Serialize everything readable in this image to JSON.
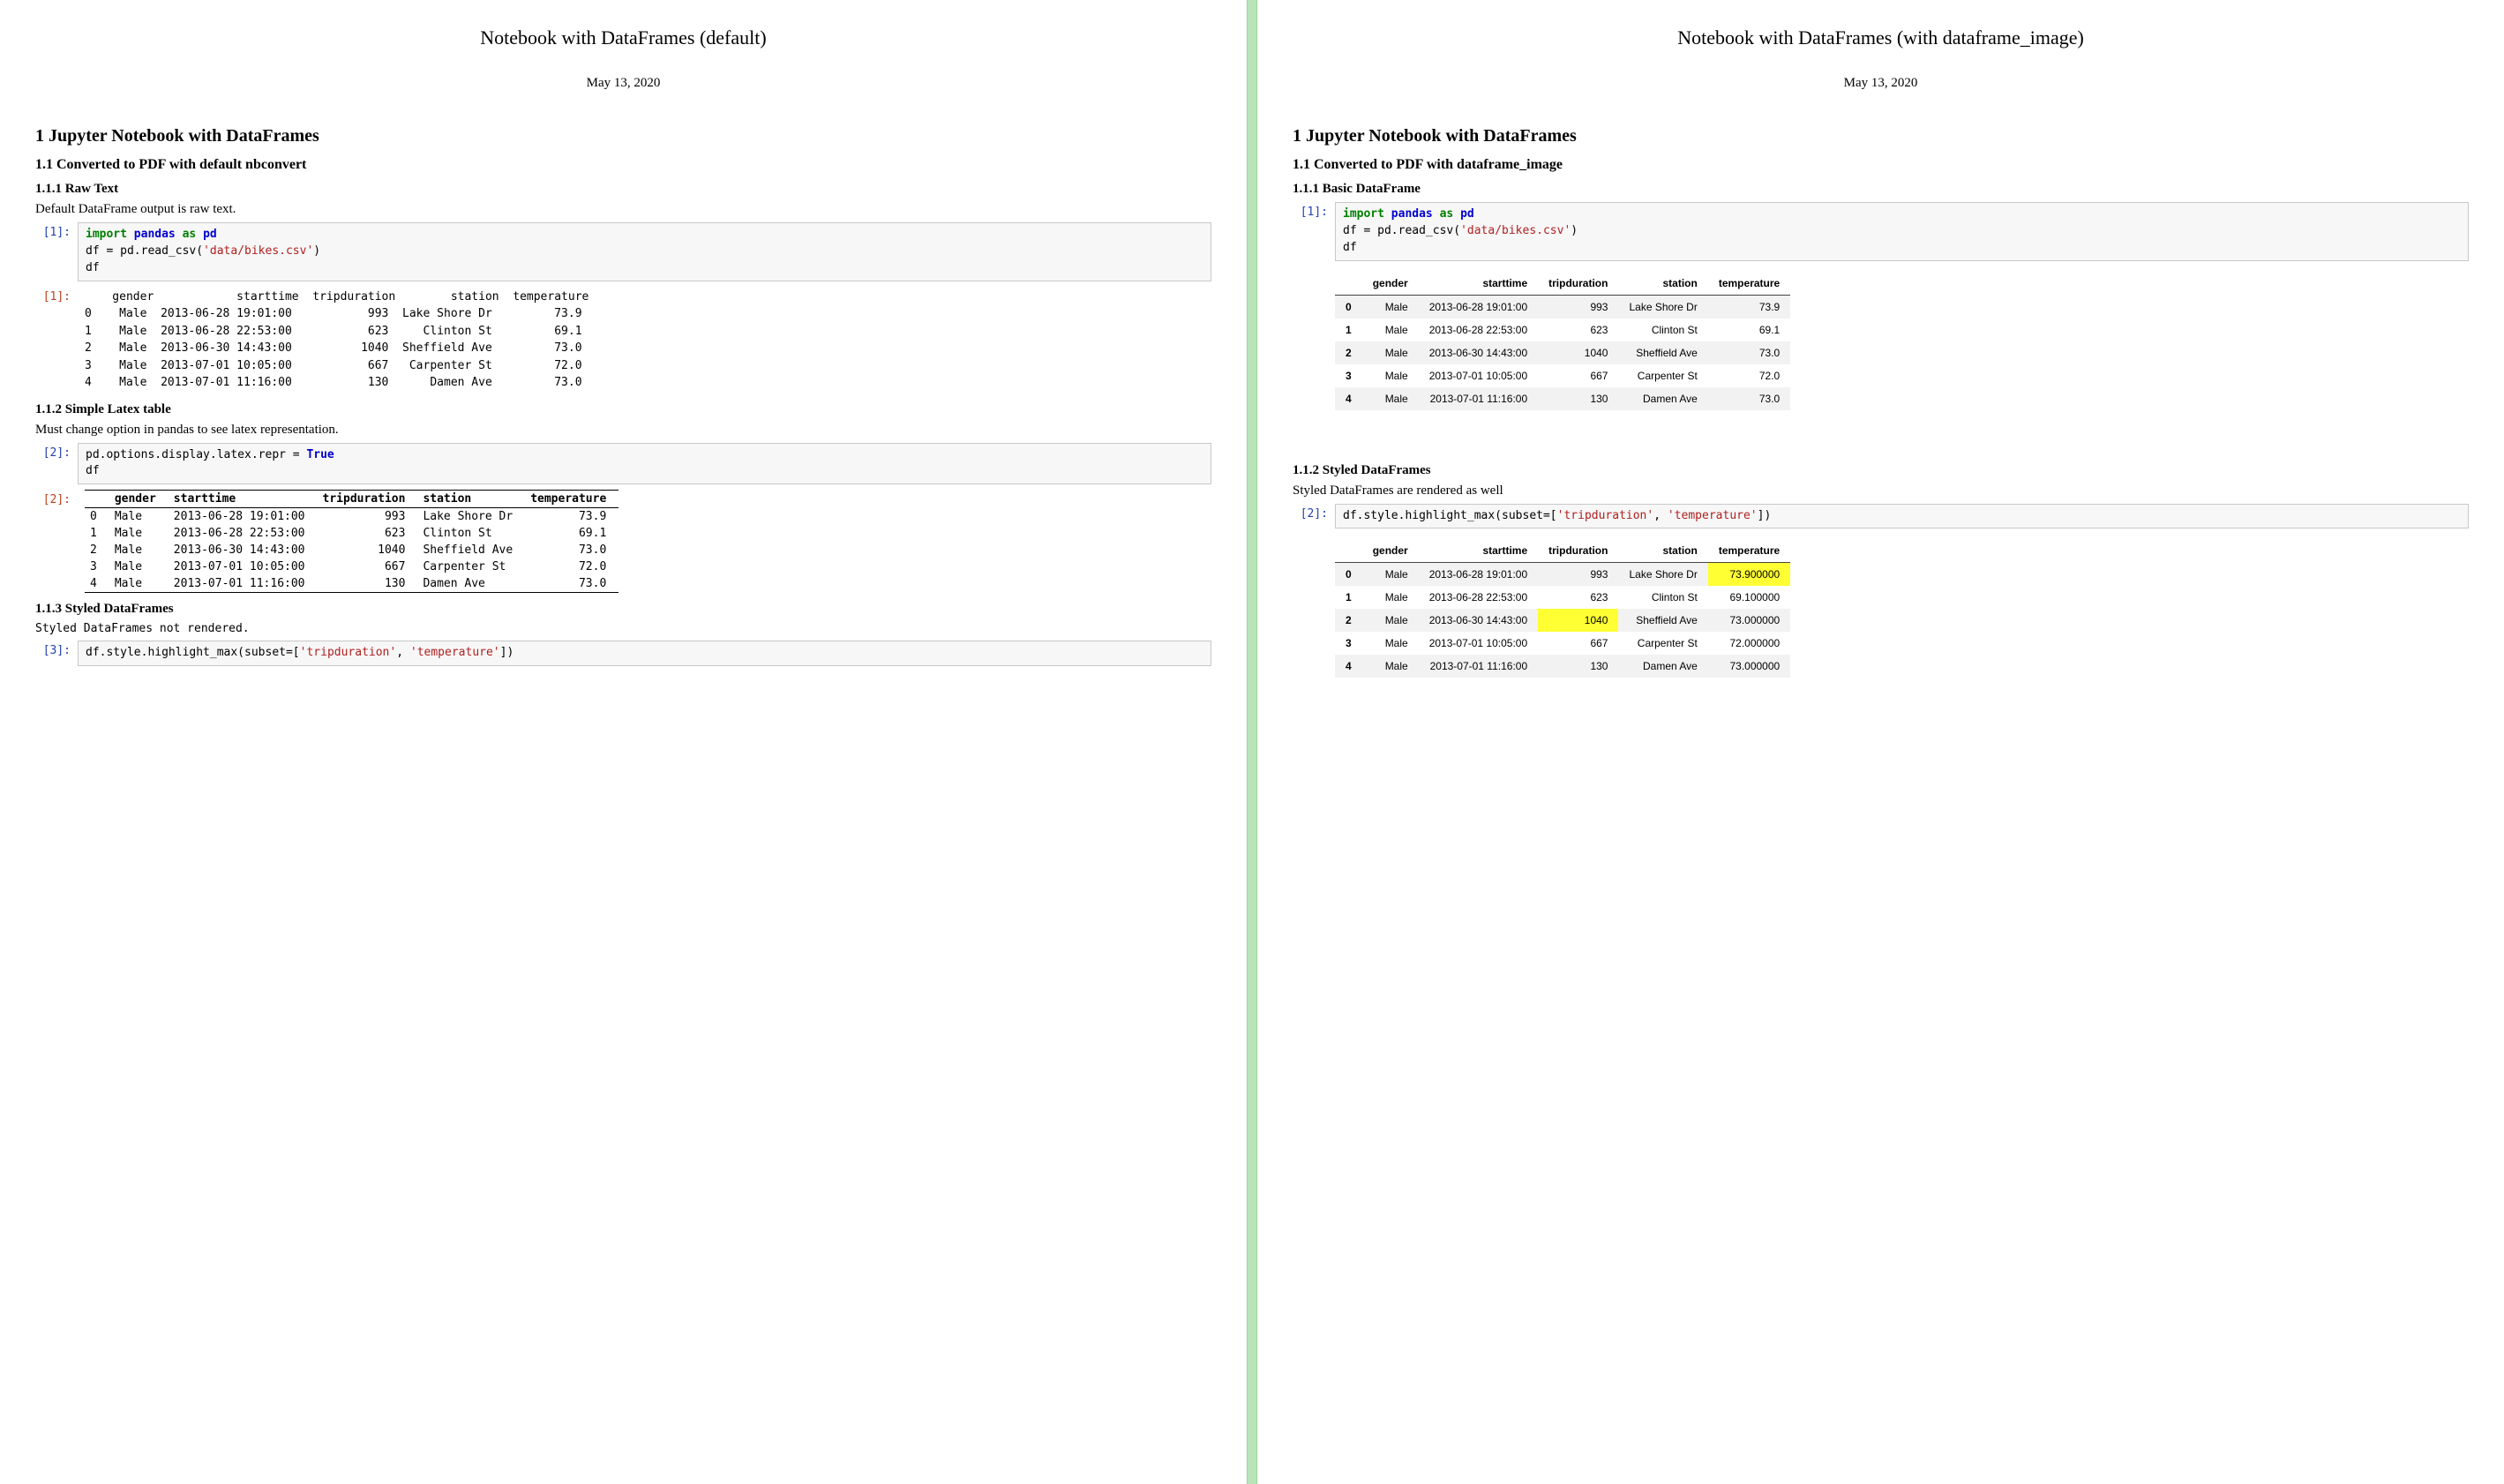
{
  "colors": {
    "divider": "#b8e4b8",
    "code_bg": "#f7f7f7",
    "code_border": "#c8c8c8",
    "prompt_in": "#2040b0",
    "prompt_out": "#c04020",
    "kw_green": "#008000",
    "kw_blue": "#0000d0",
    "string_red": "#b02020",
    "zebra_gray": "#f2f2f2",
    "highlight_yellow": "#ffff33"
  },
  "left": {
    "title": "Notebook with DataFrames (default)",
    "date": "May 13, 2020",
    "h1": "1   Jupyter Notebook with DataFrames",
    "h2": "1.1   Converted to PDF with default nbconvert",
    "s111": "1.1.1   Raw Text",
    "p111": "Default DataFrame output is raw text.",
    "in1_label": "[1]:",
    "code1_l1a": "import",
    "code1_l1b": "pandas",
    "code1_l1c": "as",
    "code1_l1d": "pd",
    "code1_l2a": "df = pd.read_csv(",
    "code1_l2b": "'data/bikes.csv'",
    "code1_l2c": ")",
    "code1_l3": "df",
    "out1_label": "[1]:",
    "raw_text_output": "    gender            starttime  tripduration        station  temperature\n0    Male  2013-06-28 19:01:00           993  Lake Shore Dr         73.9\n1    Male  2013-06-28 22:53:00           623     Clinton St         69.1\n2    Male  2013-06-30 14:43:00          1040  Sheffield Ave         73.0\n3    Male  2013-07-01 10:05:00           667   Carpenter St         72.0\n4    Male  2013-07-01 11:16:00           130      Damen Ave         73.0",
    "s112": "1.1.2   Simple Latex table",
    "p112": "Must change option in pandas to see latex representation.",
    "in2_label": "[2]:",
    "code2_l1a": "pd.options.display.latex.repr = ",
    "code2_l1b": "True",
    "code2_l2": "df",
    "out2_label": "[2]:",
    "latex_table": {
      "columns": [
        "",
        "gender",
        "starttime",
        "tripduration",
        "station",
        "temperature"
      ],
      "rows": [
        [
          "0",
          "Male",
          "2013-06-28 19:01:00",
          "993",
          "Lake Shore Dr",
          "73.9"
        ],
        [
          "1",
          "Male",
          "2013-06-28 22:53:00",
          "623",
          "Clinton St",
          "69.1"
        ],
        [
          "2",
          "Male",
          "2013-06-30 14:43:00",
          "1040",
          "Sheffield Ave",
          "73.0"
        ],
        [
          "3",
          "Male",
          "2013-07-01 10:05:00",
          "667",
          "Carpenter St",
          "72.0"
        ],
        [
          "4",
          "Male",
          "2013-07-01 11:16:00",
          "130",
          "Damen Ave",
          "73.0"
        ]
      ]
    },
    "s113": "1.1.3   Styled DataFrames",
    "p113": "Styled DataFrames not rendered.",
    "in3_label": "[3]:",
    "code3_a": "df.style.highlight_max(subset=[",
    "code3_b": "'tripduration'",
    "code3_c": ", ",
    "code3_d": "'temperature'",
    "code3_e": "])"
  },
  "right": {
    "title": "Notebook with DataFrames (with dataframe_image)",
    "date": "May 13, 2020",
    "h1": "1   Jupyter Notebook with DataFrames",
    "h2": "1.1   Converted to PDF with dataframe_image",
    "s111": "1.1.1   Basic DataFrame",
    "in1_label": "[1]:",
    "code1_l1a": "import",
    "code1_l1b": "pandas",
    "code1_l1c": "as",
    "code1_l1d": "pd",
    "code1_l2a": "df = pd.read_csv(",
    "code1_l2b": "'data/bikes.csv'",
    "code1_l2c": ")",
    "code1_l3": "df",
    "table1": {
      "columns": [
        "",
        "gender",
        "starttime",
        "tripduration",
        "station",
        "temperature"
      ],
      "rows": [
        {
          "idx": "0",
          "gender": "Male",
          "starttime": "2013-06-28 19:01:00",
          "tripduration": "993",
          "station": "Lake Shore Dr",
          "temperature": "73.9"
        },
        {
          "idx": "1",
          "gender": "Male",
          "starttime": "2013-06-28 22:53:00",
          "tripduration": "623",
          "station": "Clinton St",
          "temperature": "69.1"
        },
        {
          "idx": "2",
          "gender": "Male",
          "starttime": "2013-06-30 14:43:00",
          "tripduration": "1040",
          "station": "Sheffield Ave",
          "temperature": "73.0"
        },
        {
          "idx": "3",
          "gender": "Male",
          "starttime": "2013-07-01 10:05:00",
          "tripduration": "667",
          "station": "Carpenter St",
          "temperature": "72.0"
        },
        {
          "idx": "4",
          "gender": "Male",
          "starttime": "2013-07-01 11:16:00",
          "tripduration": "130",
          "station": "Damen Ave",
          "temperature": "73.0"
        }
      ]
    },
    "s112": "1.1.2   Styled DataFrames",
    "p112": "Styled DataFrames are rendered as well",
    "in2_label": "[2]:",
    "code2_a": "df.style.highlight_max(subset=[",
    "code2_b": "'tripduration'",
    "code2_c": ", ",
    "code2_d": "'temperature'",
    "code2_e": "])",
    "table2": {
      "columns": [
        "",
        "gender",
        "starttime",
        "tripduration",
        "station",
        "temperature"
      ],
      "rows": [
        {
          "idx": "0",
          "gender": "Male",
          "starttime": "2013-06-28 19:01:00",
          "tripduration": "993",
          "station": "Lake Shore Dr",
          "temperature": "73.900000",
          "hl_trip": false,
          "hl_temp": true
        },
        {
          "idx": "1",
          "gender": "Male",
          "starttime": "2013-06-28 22:53:00",
          "tripduration": "623",
          "station": "Clinton St",
          "temperature": "69.100000",
          "hl_trip": false,
          "hl_temp": false
        },
        {
          "idx": "2",
          "gender": "Male",
          "starttime": "2013-06-30 14:43:00",
          "tripduration": "1040",
          "station": "Sheffield Ave",
          "temperature": "73.000000",
          "hl_trip": true,
          "hl_temp": false
        },
        {
          "idx": "3",
          "gender": "Male",
          "starttime": "2013-07-01 10:05:00",
          "tripduration": "667",
          "station": "Carpenter St",
          "temperature": "72.000000",
          "hl_trip": false,
          "hl_temp": false
        },
        {
          "idx": "4",
          "gender": "Male",
          "starttime": "2013-07-01 11:16:00",
          "tripduration": "130",
          "station": "Damen Ave",
          "temperature": "73.000000",
          "hl_trip": false,
          "hl_temp": false
        }
      ]
    }
  }
}
